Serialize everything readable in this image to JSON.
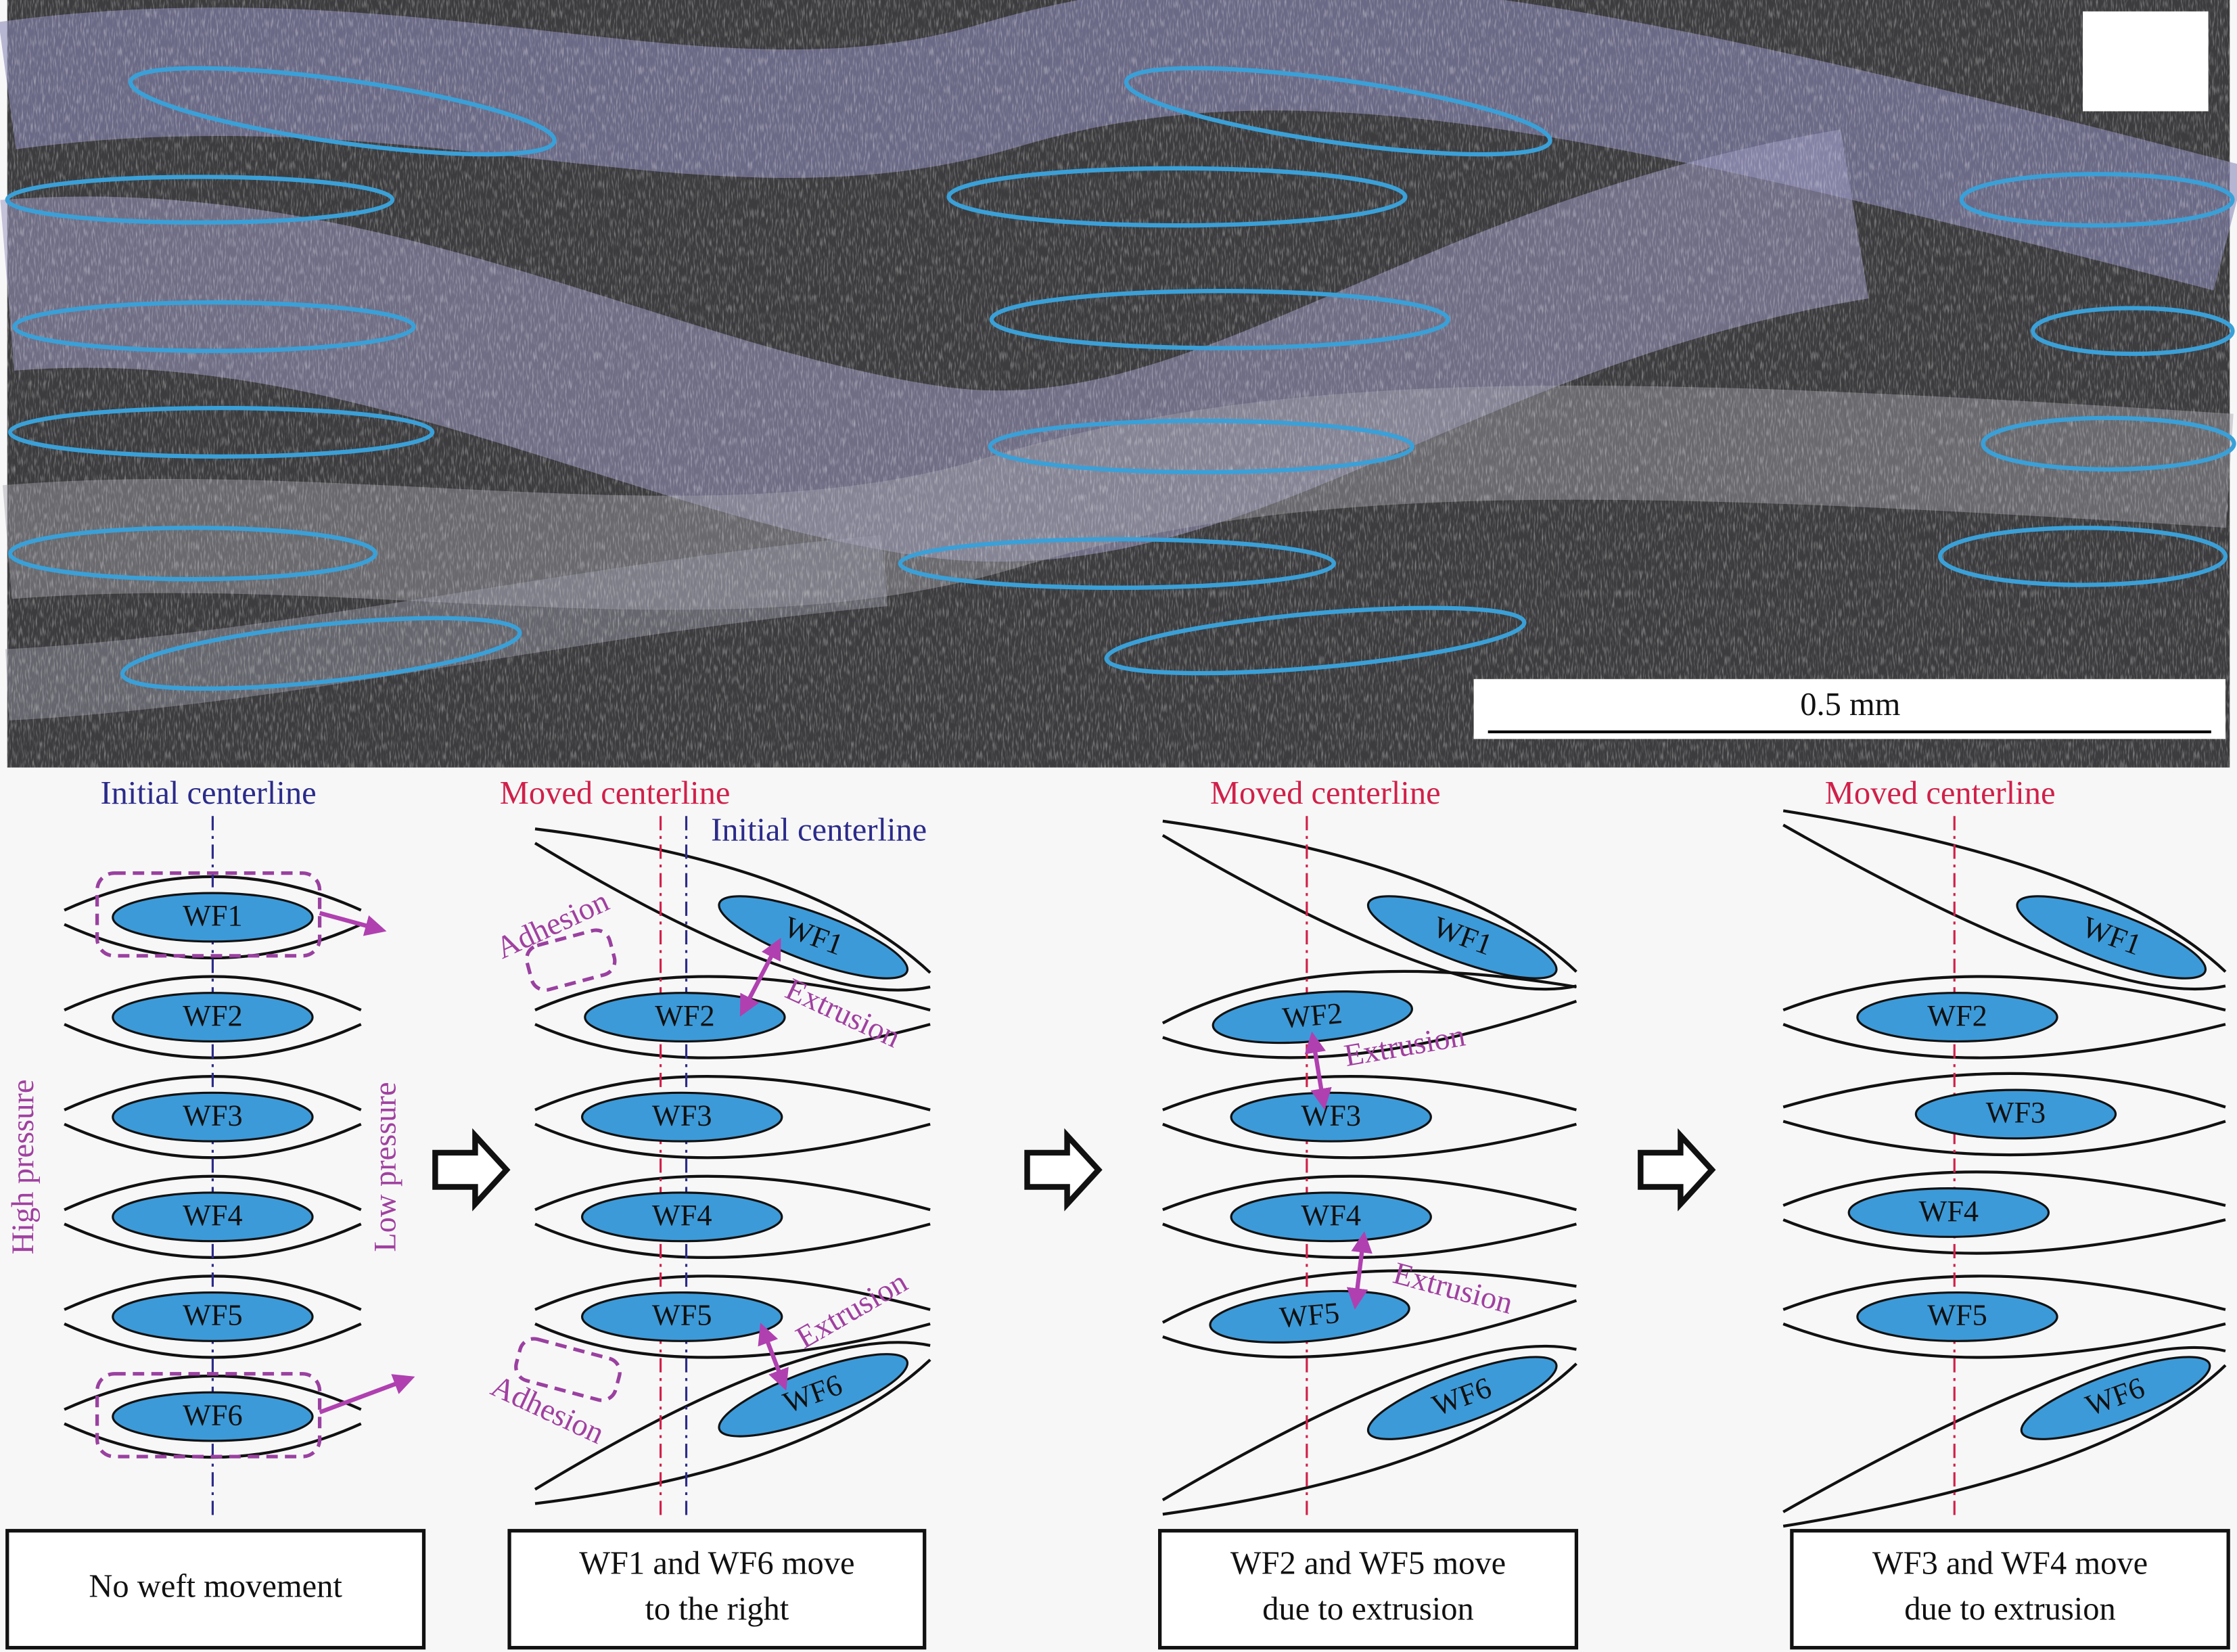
{
  "micrograph": {
    "scale_bar": "0.5 mm"
  },
  "panels": [
    {
      "centerlines": [
        "Initial centerline"
      ],
      "wefts": [
        "WF1",
        "WF2",
        "WF3",
        "WF4",
        "WF5",
        "WF6"
      ],
      "annotations": [
        "High pressure",
        "Low pressure"
      ],
      "caption": [
        "No weft movement"
      ]
    },
    {
      "centerlines": [
        "Moved centerline",
        "Initial centerline"
      ],
      "wefts": [
        "WF1",
        "WF2",
        "WF3",
        "WF4",
        "WF5",
        "WF6"
      ],
      "annotations": [
        "Adhesion",
        "Extrusion",
        "Extrusion",
        "Adhesion"
      ],
      "caption": [
        "WF1 and WF6 move",
        "to the right"
      ]
    },
    {
      "centerlines": [
        "Moved centerline"
      ],
      "wefts": [
        "WF1",
        "WF2",
        "WF3",
        "WF4",
        "WF5",
        "WF6"
      ],
      "annotations": [
        "Extrusion",
        "Extrusion"
      ],
      "caption": [
        "WF2 and WF5 move",
        "due to extrusion"
      ]
    },
    {
      "centerlines": [
        "Moved centerline"
      ],
      "wefts": [
        "WF1",
        "WF2",
        "WF3",
        "WF4",
        "WF5",
        "WF6"
      ],
      "annotations": [],
      "caption": [
        "WF3 and WF4 move",
        "due to extrusion"
      ]
    }
  ]
}
